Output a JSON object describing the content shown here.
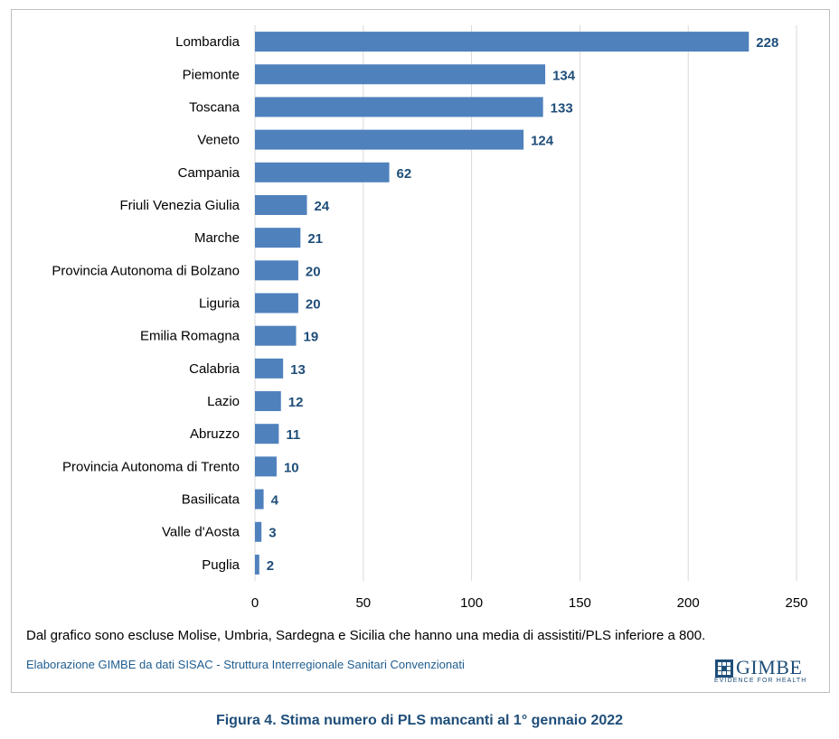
{
  "chart_data": {
    "type": "bar",
    "orientation": "horizontal",
    "categories": [
      "Lombardia",
      "Piemonte",
      "Toscana",
      "Veneto",
      "Campania",
      "Friuli Venezia Giulia",
      "Marche",
      "Provincia Autonoma di Bolzano",
      "Liguria",
      "Emilia Romagna",
      "Calabria",
      "Lazio",
      "Abruzzo",
      "Provincia Autonoma di Trento",
      "Basilicata",
      "Valle d'Aosta",
      "Puglia"
    ],
    "values": [
      228,
      134,
      133,
      124,
      62,
      24,
      21,
      20,
      20,
      19,
      13,
      12,
      11,
      10,
      4,
      3,
      2
    ],
    "xlim": [
      0,
      250
    ],
    "xticks": [
      0,
      50,
      100,
      150,
      200,
      250
    ],
    "grid": "vertical",
    "bar_color": "#4f81bd",
    "label_color": "#1f4e79",
    "title": "",
    "xlabel": "",
    "ylabel": ""
  },
  "note": "Dal grafico sono escluse Molise, Umbria, Sardegna e Sicilia che hanno una media di assistiti/PLS inferiore a 800.",
  "source": "Elaborazione GIMBE da dati SISAC - Struttura Interregionale Sanitari Convenzionati",
  "logo": {
    "brand": "GIMBE",
    "tagline": "EVIDENCE FOR HEALTH"
  },
  "caption": "Figura 4. Stima numero di PLS mancanti al 1° gennaio 2022"
}
